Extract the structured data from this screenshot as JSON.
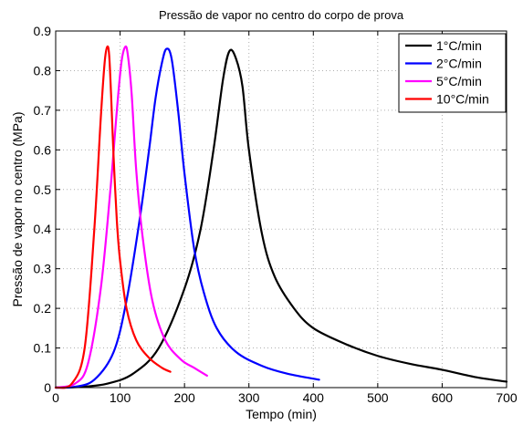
{
  "chart_data": {
    "type": "line",
    "title": "Pressão de vapor no centro do corpo de prova",
    "xlabel": "Tempo (min)",
    "ylabel": "Pressão de vapor no centro (MPa)",
    "xlim": [
      0,
      700
    ],
    "ylim": [
      0,
      0.9
    ],
    "xticks": [
      0,
      100,
      200,
      300,
      400,
      500,
      600,
      700
    ],
    "yticks": [
      0,
      0.1,
      0.2,
      0.3,
      0.4,
      0.5,
      0.6,
      0.7,
      0.8,
      0.9
    ],
    "grid": true,
    "legend_position": "top-right",
    "series": [
      {
        "name": "1°C/min",
        "color": "#000000",
        "x": [
          0,
          40,
          80,
          120,
          160,
          200,
          225,
          245,
          260,
          270,
          280,
          290,
          300,
          320,
          340,
          370,
          400,
          450,
          500,
          550,
          600,
          650,
          700
        ],
        "y": [
          0.0,
          0.002,
          0.01,
          0.035,
          0.1,
          0.25,
          0.4,
          0.6,
          0.78,
          0.85,
          0.83,
          0.76,
          0.6,
          0.39,
          0.28,
          0.2,
          0.15,
          0.11,
          0.08,
          0.06,
          0.045,
          0.027,
          0.015
        ]
      },
      {
        "name": "2°C/min",
        "color": "#0000ff",
        "x": [
          0,
          30,
          60,
          90,
          110,
          130,
          145,
          155,
          165,
          172,
          180,
          190,
          200,
          215,
          230,
          250,
          280,
          320,
          360,
          409
        ],
        "y": [
          0.0,
          0.002,
          0.02,
          0.09,
          0.22,
          0.42,
          0.6,
          0.73,
          0.82,
          0.855,
          0.83,
          0.7,
          0.54,
          0.35,
          0.24,
          0.15,
          0.09,
          0.055,
          0.035,
          0.02
        ]
      },
      {
        "name": "5°C/min",
        "color": "#ff00ff",
        "x": [
          0,
          30,
          50,
          70,
          85,
          95,
          102,
          108,
          112,
          118,
          125,
          135,
          150,
          170,
          195,
          215,
          235
        ],
        "y": [
          0.0,
          0.01,
          0.06,
          0.25,
          0.5,
          0.7,
          0.82,
          0.86,
          0.84,
          0.74,
          0.55,
          0.38,
          0.22,
          0.12,
          0.07,
          0.05,
          0.03
        ]
      },
      {
        "name": "10°C/min",
        "color": "#ff0000",
        "x": [
          0,
          25,
          45,
          60,
          70,
          76,
          80,
          83,
          86,
          90,
          95,
          100,
          110,
          125,
          145,
          165,
          178
        ],
        "y": [
          0.0,
          0.01,
          0.1,
          0.4,
          0.68,
          0.82,
          0.86,
          0.84,
          0.74,
          0.58,
          0.42,
          0.32,
          0.2,
          0.12,
          0.075,
          0.05,
          0.04
        ]
      }
    ]
  }
}
